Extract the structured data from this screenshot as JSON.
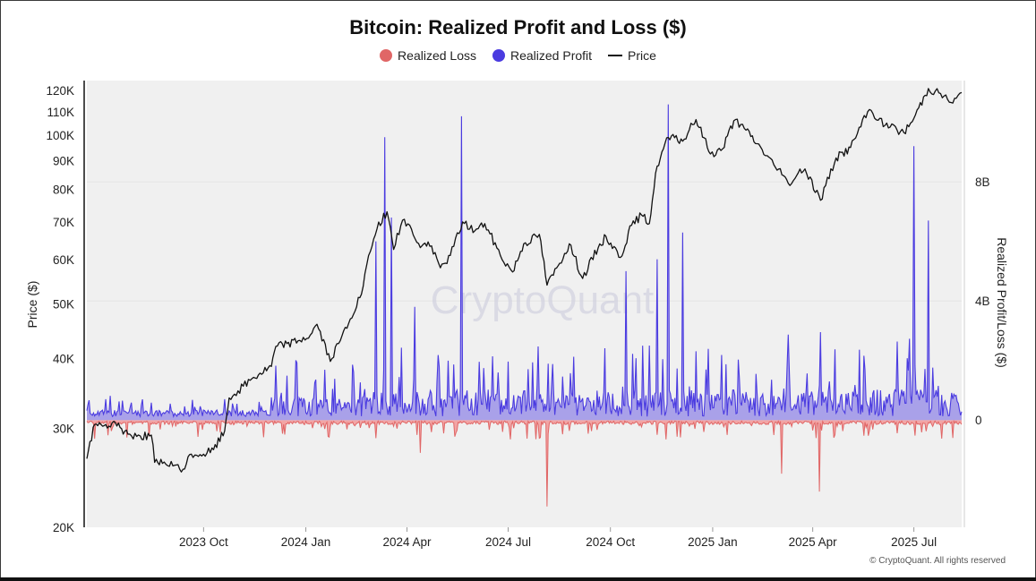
{
  "chart_data": {
    "type": "area",
    "title": "Bitcoin: Realized Profit and Loss ($)",
    "legend": [
      {
        "name": "Realized Loss",
        "color": "#e06666",
        "marker": "dot"
      },
      {
        "name": "Realized Profit",
        "color": "#4a3be0",
        "marker": "dot"
      },
      {
        "name": "Price",
        "color": "#111111",
        "marker": "line"
      }
    ],
    "ylabel_left": "Price ($)",
    "ylabel_right": "Realized Profit/Loss ($)",
    "y_left_scale": "log",
    "y_left_range": [
      20000,
      125000
    ],
    "y_left_ticks": [
      "120K",
      "110K",
      "100K",
      "90K",
      "80K",
      "70K",
      "60K",
      "50K",
      "40K",
      "30K",
      "20K"
    ],
    "y_left_tick_values": [
      120000,
      110000,
      100000,
      90000,
      80000,
      70000,
      60000,
      50000,
      40000,
      30000,
      20000
    ],
    "y_right_ticks": [
      "8B",
      "4B",
      "0"
    ],
    "y_right_tick_values": [
      8,
      4,
      0
    ],
    "y_right_range": [
      -3.6,
      11.4
    ],
    "y_right_unit": "billions USD",
    "x_start": "2023-06-18",
    "x_end": "2025-08-13",
    "x_ticks": [
      "2023 Oct",
      "2024 Jan",
      "2024 Apr",
      "2024 Jul",
      "2024 Oct",
      "2025 Jan",
      "2025 Apr",
      "2025 Jul"
    ],
    "x_tick_dates": [
      "2023-10-01",
      "2024-01-01",
      "2024-04-01",
      "2024-07-01",
      "2024-10-01",
      "2025-01-01",
      "2025-04-01",
      "2025-07-01"
    ],
    "watermark": "CryptoQuant",
    "price_series": {
      "name": "Price",
      "dates": [
        "2023-06-18",
        "2023-06-25",
        "2023-07-05",
        "2023-07-15",
        "2023-07-25",
        "2023-08-05",
        "2023-08-15",
        "2023-08-18",
        "2023-08-25",
        "2023-09-05",
        "2023-09-11",
        "2023-09-20",
        "2023-10-01",
        "2023-10-10",
        "2023-10-20",
        "2023-10-24",
        "2023-11-01",
        "2023-11-15",
        "2023-12-01",
        "2023-12-05",
        "2023-12-15",
        "2023-12-25",
        "2024-01-05",
        "2024-01-11",
        "2024-01-23",
        "2024-02-01",
        "2024-02-10",
        "2024-02-20",
        "2024-02-28",
        "2024-03-05",
        "2024-03-14",
        "2024-03-20",
        "2024-03-28",
        "2024-04-05",
        "2024-04-13",
        "2024-04-20",
        "2024-05-01",
        "2024-05-10",
        "2024-05-21",
        "2024-06-01",
        "2024-06-10",
        "2024-06-24",
        "2024-07-05",
        "2024-07-15",
        "2024-07-29",
        "2024-08-05",
        "2024-08-15",
        "2024-08-25",
        "2024-09-06",
        "2024-09-20",
        "2024-09-27",
        "2024-10-10",
        "2024-10-20",
        "2024-10-29",
        "2024-11-05",
        "2024-11-12",
        "2024-11-22",
        "2024-12-05",
        "2024-12-17",
        "2024-12-30",
        "2025-01-10",
        "2025-01-20",
        "2025-01-31",
        "2025-02-10",
        "2025-02-25",
        "2025-03-10",
        "2025-03-25",
        "2025-04-08",
        "2025-04-22",
        "2025-05-05",
        "2025-05-22",
        "2025-06-05",
        "2025-06-22",
        "2025-07-01",
        "2025-07-14",
        "2025-07-25",
        "2025-08-05",
        "2025-08-13"
      ],
      "values": [
        26500,
        30500,
        30500,
        30300,
        29300,
        29100,
        29200,
        26100,
        26000,
        25800,
        25100,
        27000,
        27000,
        27500,
        29700,
        34000,
        35000,
        37000,
        38700,
        42000,
        42500,
        43000,
        44000,
        46000,
        39500,
        43000,
        47000,
        52000,
        62000,
        68000,
        73000,
        62500,
        70500,
        68000,
        63000,
        64500,
        58000,
        61000,
        70000,
        67500,
        69500,
        61000,
        57000,
        64000,
        66500,
        54000,
        58500,
        64000,
        55500,
        63000,
        66000,
        60500,
        69000,
        72000,
        69500,
        88000,
        99000,
        97500,
        106500,
        92500,
        94500,
        106000,
        102000,
        96500,
        88500,
        82000,
        87000,
        76500,
        91000,
        95000,
        111000,
        104000,
        101000,
        107000,
        121000,
        118500,
        114000,
        119000
      ]
    },
    "profit_spikes": [
      {
        "date": "2024-03-04",
        "value": 6.0
      },
      {
        "date": "2024-03-12",
        "value": 9.5
      },
      {
        "date": "2024-03-18",
        "value": 6.8
      },
      {
        "date": "2024-04-08",
        "value": 3.8
      },
      {
        "date": "2024-04-30",
        "value": 1.8
      },
      {
        "date": "2024-05-20",
        "value": 10.2
      },
      {
        "date": "2024-10-15",
        "value": 5.0
      },
      {
        "date": "2024-11-12",
        "value": 5.4
      },
      {
        "date": "2024-11-22",
        "value": 10.6
      },
      {
        "date": "2024-12-05",
        "value": 6.3
      },
      {
        "date": "2025-07-01",
        "value": 9.2
      },
      {
        "date": "2025-07-14",
        "value": 6.7
      }
    ],
    "loss_spikes": [
      {
        "date": "2024-08-05",
        "value": -2.9
      },
      {
        "date": "2024-04-13",
        "value": -1.1
      },
      {
        "date": "2025-03-04",
        "value": -1.8
      },
      {
        "date": "2025-04-07",
        "value": -2.4
      }
    ]
  },
  "footer": {
    "copyright": "© CryptoQuant. All rights reserved"
  }
}
